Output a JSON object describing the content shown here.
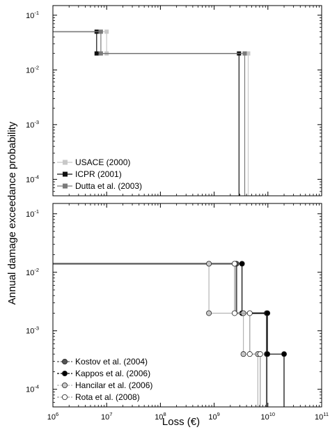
{
  "chart_data": {
    "type": "line",
    "shared_xlabel": "Loss (€)",
    "shared_ylabel": "Annual damage exceedance probability",
    "xlim": [
      1000000,
      100000000000
    ],
    "xscale": "log",
    "x_tick_labels": [
      "10",
      "10",
      "10",
      "10",
      "10",
      "10"
    ],
    "x_tick_exponents": [
      "6",
      "7",
      "8",
      "9",
      "10",
      "11"
    ],
    "panels": [
      {
        "name": "top",
        "yscale": "log",
        "ylim": [
          5e-05,
          0.15
        ],
        "y_tick_labels": [
          "10",
          "10",
          "10",
          "10"
        ],
        "y_tick_exponents": [
          "-4",
          "-3",
          "-2",
          "-1"
        ],
        "legend_position": "bottom-left",
        "series": [
          {
            "name": "USACE (2000)",
            "color": "#c8c8c8",
            "marker": "square",
            "lw": 1.2,
            "steps": [
              [
                1000000,
                0.05
              ],
              [
                10000000,
                0.05
              ],
              [
                10000000,
                0.02
              ],
              [
                4300000000,
                0.02
              ],
              [
                4300000000,
                5e-05
              ]
            ],
            "points": [
              [
                10000000,
                0.05
              ],
              [
                10000000,
                0.02
              ],
              [
                4300000000,
                0.02
              ]
            ]
          },
          {
            "name": "ICPR (2001)",
            "color": "#111111",
            "marker": "square",
            "lw": 1.2,
            "steps": [
              [
                1000000,
                0.05
              ],
              [
                6500000,
                0.05
              ],
              [
                6500000,
                0.02
              ],
              [
                2900000000,
                0.02
              ],
              [
                2900000000,
                5e-05
              ]
            ],
            "points": [
              [
                6500000,
                0.05
              ],
              [
                6500000,
                0.02
              ],
              [
                2900000000,
                0.02
              ]
            ]
          },
          {
            "name": "Dutta et al. (2003)",
            "color": "#7a7a7a",
            "marker": "square",
            "lw": 1.2,
            "steps": [
              [
                1000000,
                0.05
              ],
              [
                7800000,
                0.05
              ],
              [
                7800000,
                0.02
              ],
              [
                3700000000,
                0.02
              ],
              [
                3700000000,
                5e-05
              ]
            ],
            "points": [
              [
                7800000,
                0.05
              ],
              [
                7800000,
                0.02
              ],
              [
                3700000000,
                0.02
              ]
            ]
          }
        ]
      },
      {
        "name": "bottom",
        "yscale": "log",
        "ylim": [
          5e-05,
          0.15
        ],
        "y_tick_labels": [
          "10",
          "10",
          "10",
          "10"
        ],
        "y_tick_exponents": [
          "-4",
          "-3",
          "-2",
          "-1"
        ],
        "legend_position": "bottom-left",
        "series": [
          {
            "name": "Kostov et al. (2004)",
            "color": "#555555",
            "marker": "circle",
            "marker_fill": "#555555",
            "dashed": true,
            "lw": 2.2,
            "steps": [
              [
                1000000,
                0.014
              ],
              [
                2600000000,
                0.014
              ],
              [
                2600000000,
                0.002
              ],
              [
                9500000000,
                0.002
              ],
              [
                9500000000,
                0.0004
              ],
              [
                9500000000,
                5e-05
              ]
            ],
            "points": [
              [
                2600000000,
                0.014
              ],
              [
                9500000000,
                0.002
              ],
              [
                9500000000,
                0.0004
              ]
            ]
          },
          {
            "name": "Kappos et al. (2006)",
            "color": "#000000",
            "marker": "circle",
            "marker_fill": "#000000",
            "dashed": true,
            "lw": 1.2,
            "steps": [
              [
                3300000000,
                0.014
              ],
              [
                3300000000,
                0.002
              ],
              [
                9800000000,
                0.002
              ],
              [
                9800000000,
                0.0004
              ],
              [
                20000000000,
                0.0004
              ],
              [
                20000000000,
                5e-05
              ]
            ],
            "points": [
              [
                3300000000,
                0.014
              ],
              [
                3300000000,
                0.002
              ],
              [
                9800000000,
                0.002
              ],
              [
                9800000000,
                0.0004
              ],
              [
                20000000000,
                0.0004
              ]
            ]
          },
          {
            "name": "Hancilar et al. (2006)",
            "color": "#b4b4b4",
            "marker": "circle",
            "marker_fill": "#c8c8c8",
            "dashed": true,
            "lw": 1.2,
            "steps": [
              [
                800000000,
                0.014
              ],
              [
                800000000,
                0.002
              ],
              [
                3500000000,
                0.002
              ],
              [
                3500000000,
                0.0004
              ],
              [
                6500000000,
                0.0004
              ],
              [
                6500000000,
                5e-05
              ]
            ],
            "points": [
              [
                800000000,
                0.014
              ],
              [
                800000000,
                0.002
              ],
              [
                3500000000,
                0.002
              ],
              [
                3500000000,
                0.0004
              ],
              [
                6500000000,
                0.0004
              ]
            ]
          },
          {
            "name": "Rota et al. (2008)",
            "color": "#9a9a9a",
            "marker": "circle",
            "marker_fill": "#ffffff",
            "dashed": true,
            "lw": 1.2,
            "steps": [
              [
                2400000000,
                0.014
              ],
              [
                2400000000,
                0.002
              ],
              [
                4600000000,
                0.002
              ],
              [
                4600000000,
                0.0004
              ],
              [
                7200000000,
                0.0004
              ],
              [
                7200000000,
                5e-05
              ]
            ],
            "points": [
              [
                2400000000,
                0.014
              ],
              [
                2400000000,
                0.002
              ],
              [
                4600000000,
                0.002
              ],
              [
                4600000000,
                0.0004
              ],
              [
                7200000000,
                0.0004
              ]
            ]
          }
        ]
      }
    ]
  }
}
